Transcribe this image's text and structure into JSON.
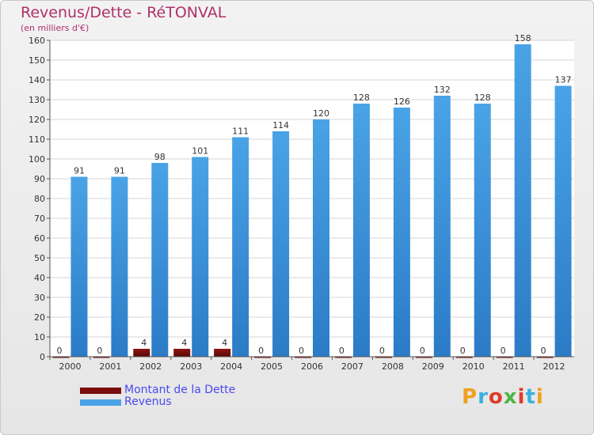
{
  "title": "Revenus/Dette - RéTONVAL",
  "subtitle": "(en milliers d'€)",
  "brand": "Proxiti",
  "colors": {
    "title": "#b0306a",
    "dette": "#7a0d0d",
    "revenus": "#4aa3e6",
    "revenus_dark": "#2b7bc6",
    "grid": "#d6d6d6",
    "legend_text": "#4a4af0"
  },
  "chart_data": {
    "type": "bar",
    "title": "Revenus/Dette - RéTONVAL",
    "ylabel": "(en milliers d'€)",
    "xlabel": "",
    "ylim": [
      0,
      160
    ],
    "ytick_step": 10,
    "grid": true,
    "legend_position": "bottom-left",
    "categories": [
      "2000",
      "2001",
      "2002",
      "2003",
      "2004",
      "2005",
      "2006",
      "2007",
      "2008",
      "2009",
      "2010",
      "2011",
      "2012"
    ],
    "series": [
      {
        "name": "Montant de la Dette",
        "values": [
          0,
          0,
          4,
          4,
          4,
          0,
          0,
          0,
          0,
          0,
          0,
          0,
          0
        ]
      },
      {
        "name": "Revenus",
        "values": [
          91,
          91,
          98,
          101,
          111,
          114,
          120,
          128,
          126,
          132,
          128,
          158,
          137
        ]
      }
    ]
  }
}
